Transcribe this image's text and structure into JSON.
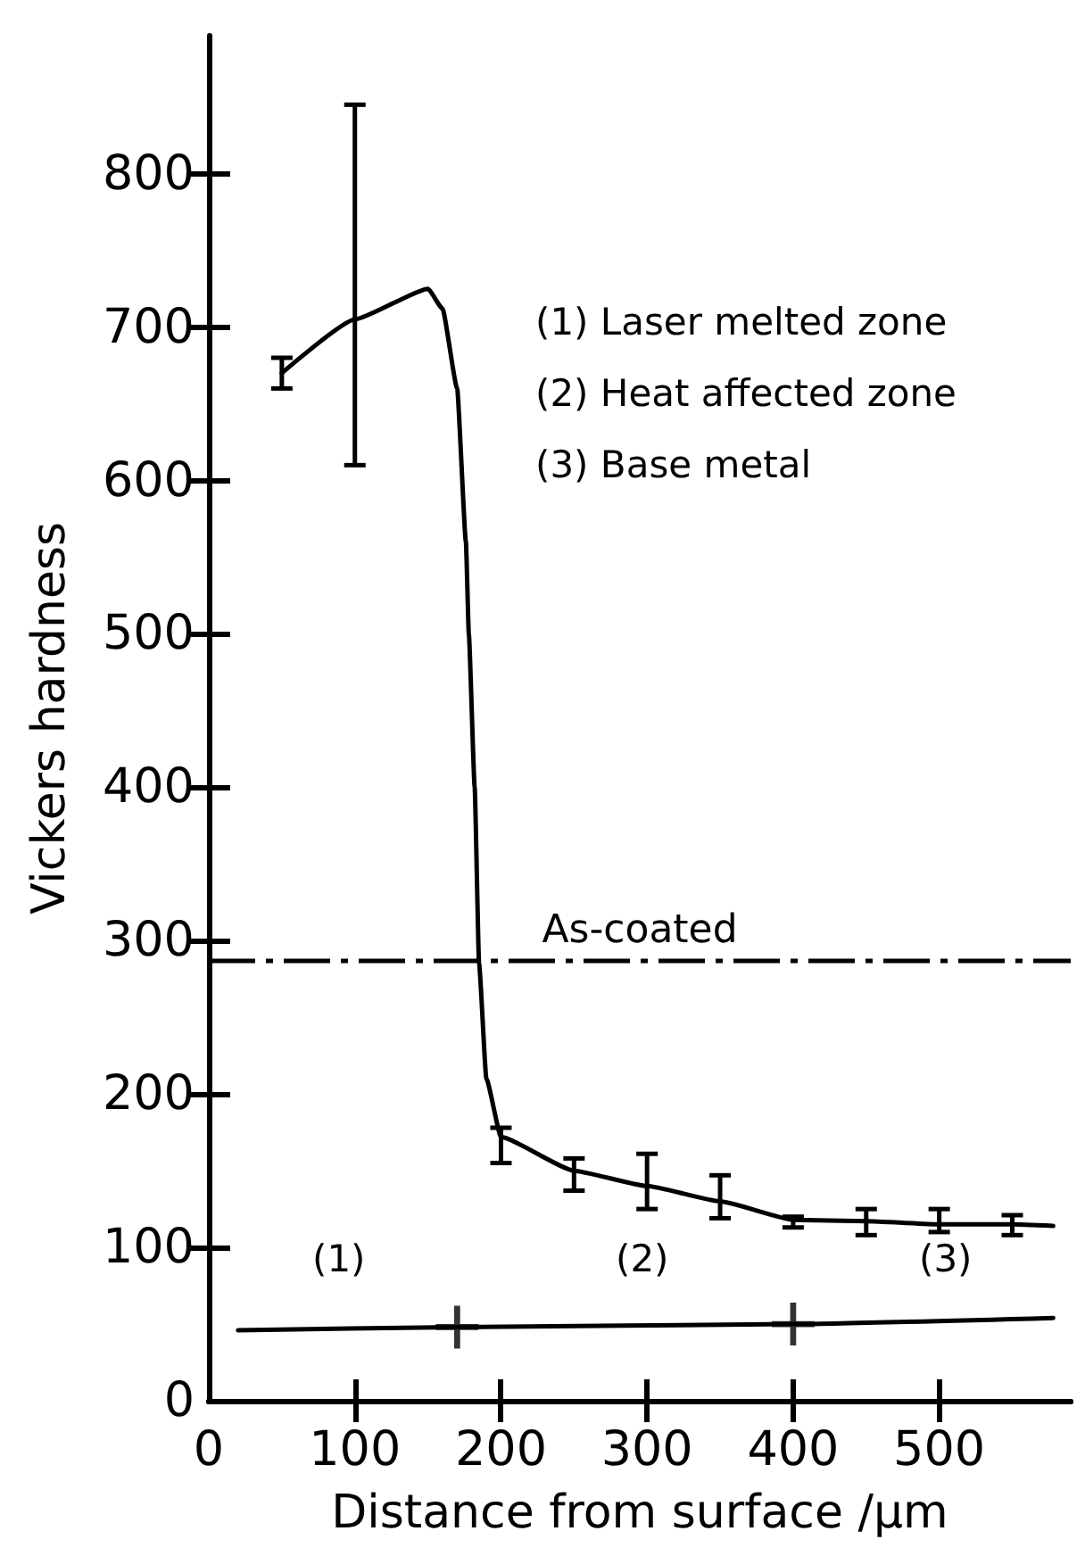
{
  "chart_data": {
    "type": "line",
    "xlabel": "Distance from surface /μm",
    "ylabel": "Vickers hardness",
    "xlim": [
      0,
      590
    ],
    "ylim": [
      0,
      890
    ],
    "xticks": [
      0,
      100,
      200,
      300,
      400,
      500
    ],
    "yticks": [
      0,
      100,
      200,
      300,
      400,
      500,
      600,
      700,
      800
    ],
    "grid": false,
    "marker": "none",
    "line_style": "solid",
    "series": [
      {
        "color": "#000000",
        "x": [
          50,
          100,
          150,
          160,
          170,
          176,
          178,
          182,
          185,
          190,
          200,
          250,
          300,
          350,
          400,
          450,
          500,
          550,
          578
        ],
        "values": [
          670,
          705,
          725,
          712,
          660,
          560,
          500,
          400,
          285,
          210,
          172,
          150,
          140,
          130,
          118,
          117,
          115,
          115,
          114
        ],
        "errors": [
          [
            660,
            680
          ],
          [
            610,
            845
          ],
          null,
          null,
          null,
          null,
          null,
          null,
          null,
          null,
          [
            155,
            178
          ],
          [
            137,
            158
          ],
          [
            125,
            161
          ],
          [
            119,
            147
          ],
          [
            113,
            120
          ],
          [
            108,
            125
          ],
          [
            110,
            125
          ],
          [
            108,
            121
          ],
          null
        ]
      },
      {
        "color": "#000000",
        "x": [
          20,
          170,
          400,
          578
        ],
        "values": [
          46,
          48,
          50,
          54
        ]
      },
      {
        "type": "scatter",
        "marker": "cross",
        "color": "#000000",
        "x": [
          170,
          400
        ],
        "values": [
          48,
          50
        ]
      }
    ],
    "ref_lines": [
      {
        "axis": "y",
        "value": 287,
        "label": "As-coated",
        "line_style": "dashed",
        "color": "#000000"
      }
    ],
    "annotations": [
      "(1) Laser melted zone",
      "(2) Heat affected zone",
      "(3) Base metal",
      "(1)",
      "(2)",
      "(3)"
    ]
  }
}
